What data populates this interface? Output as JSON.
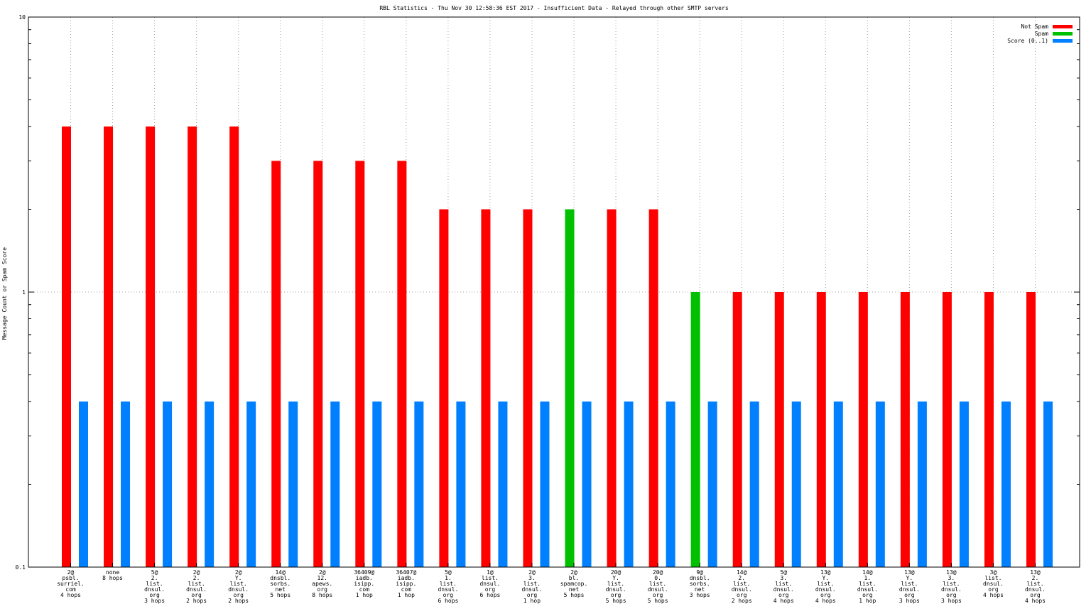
{
  "chart_data": {
    "type": "bar",
    "title": "RBL Statistics - Thu Nov 30 12:58:36 EST 2017 - Insufficient Data - Relayed through other SMTP servers",
    "xlabel": "",
    "ylabel": "Message Count or Spam Score",
    "yscale": "log",
    "ylim": [
      0.1,
      10
    ],
    "yticks": [
      "0.1",
      "1",
      "10"
    ],
    "grid": true,
    "legend_position": "top-right",
    "categories": [
      [
        "2@",
        "psbl.",
        "surriel.",
        "com",
        "4 hops"
      ],
      [
        "none",
        "8 hops"
      ],
      [
        "5@",
        "2.",
        "list.",
        "dnsul.",
        "org",
        "3 hops"
      ],
      [
        "2@",
        "2.",
        "list.",
        "dnsul.",
        "org",
        "2 hops"
      ],
      [
        "2@",
        "Y.",
        "list.",
        "dnsul.",
        "org",
        "2 hops"
      ],
      [
        "14@",
        "dnsbl.",
        "sorbs.",
        "net",
        "5 hops"
      ],
      [
        "2@",
        "12.",
        "apews.",
        "org",
        "8 hops"
      ],
      [
        "36409@",
        "iadb.",
        "isipp.",
        "com",
        "1 hop"
      ],
      [
        "36407@",
        "iadb.",
        "isipp.",
        "com",
        "1 hop"
      ],
      [
        "5@",
        "1.",
        "list.",
        "dnsul.",
        "org",
        "6 hops"
      ],
      [
        "1@",
        "list.",
        "dnsul.",
        "org",
        "6 hops"
      ],
      [
        "2@",
        "3.",
        "list.",
        "dnsul.",
        "org",
        "1 hop"
      ],
      [
        "2@",
        "bl.",
        "spamcop.",
        "net",
        "5 hops"
      ],
      [
        "20@",
        "Y.",
        "list.",
        "dnsul.",
        "org",
        "5 hops"
      ],
      [
        "20@",
        "0.",
        "list.",
        "dnsul.",
        "org",
        "5 hops"
      ],
      [
        "9@",
        "dnsbl.",
        "sorbs.",
        "net",
        "3 hops"
      ],
      [
        "14@",
        "2.",
        "list.",
        "dnsul.",
        "org",
        "2 hops"
      ],
      [
        "5@",
        "3.",
        "list.",
        "dnsul.",
        "org",
        "4 hops"
      ],
      [
        "13@",
        "Y.",
        "list.",
        "dnsul.",
        "org",
        "4 hops"
      ],
      [
        "14@",
        "1.",
        "list.",
        "dnsul.",
        "org",
        "1 hop"
      ],
      [
        "13@",
        "Y.",
        "list.",
        "dnsul.",
        "org",
        "3 hops"
      ],
      [
        "13@",
        "3.",
        "list.",
        "dnsul.",
        "org",
        "3 hops"
      ],
      [
        "3@",
        "list.",
        "dnsul.",
        "org",
        "4 hops"
      ],
      [
        "13@",
        "2.",
        "list.",
        "dnsul.",
        "org",
        "4 hops"
      ]
    ],
    "series": [
      {
        "name": "Not Spam",
        "color": "#ff0000",
        "values": [
          4,
          4,
          4,
          4,
          4,
          3,
          3,
          3,
          3,
          2,
          2,
          2,
          0,
          2,
          2,
          0,
          1,
          1,
          1,
          1,
          1,
          1,
          1,
          1
        ]
      },
      {
        "name": "Spam",
        "color": "#00c000",
        "values": [
          0,
          0,
          0,
          0,
          0,
          0,
          0,
          0,
          0,
          0,
          0,
          0,
          2,
          0,
          0,
          1,
          0,
          0,
          0,
          0,
          0,
          0,
          0,
          0
        ]
      },
      {
        "name": "Score (0..1)",
        "color": "#0080ff",
        "values": [
          0.4,
          0.4,
          0.4,
          0.4,
          0.4,
          0.4,
          0.4,
          0.4,
          0.4,
          0.4,
          0.4,
          0.4,
          0.4,
          0.4,
          0.4,
          0.4,
          0.4,
          0.4,
          0.4,
          0.4,
          0.4,
          0.4,
          0.4,
          0.4
        ]
      }
    ]
  }
}
